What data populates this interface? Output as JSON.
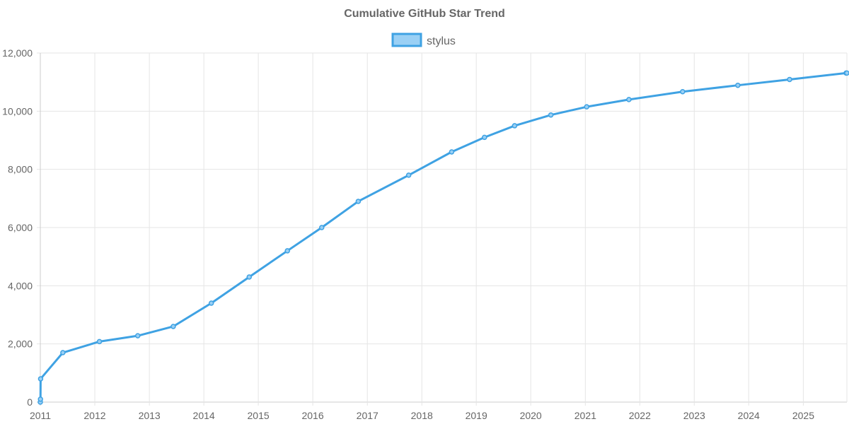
{
  "chart_data": {
    "type": "line",
    "title": "Cumulative GitHub Star Trend",
    "xlabel": "",
    "ylabel": "",
    "x_axis": {
      "type": "time",
      "range": [
        "2011-01-01",
        "2025-10-20"
      ],
      "tick_labels": [
        "2011",
        "2012",
        "2013",
        "2014",
        "2015",
        "2016",
        "2017",
        "2018",
        "2019",
        "2020",
        "2021",
        "2022",
        "2023",
        "2024",
        "2025"
      ]
    },
    "y_axis": {
      "range": [
        0,
        12000
      ],
      "tick_values": [
        0,
        2000,
        4000,
        6000,
        8000,
        10000,
        12000
      ],
      "tick_labels": [
        "0",
        "2,000",
        "4,000",
        "6,000",
        "8,000",
        "10,000",
        "12,000"
      ]
    },
    "grid": true,
    "legend": {
      "position": "top-center"
    },
    "series": [
      {
        "name": "stylus",
        "color": "#3fa2e3",
        "fill_color": "#9ad0f5",
        "points": [
          {
            "x": "2011-01-01",
            "y": 0
          },
          {
            "x": "2011-01-02",
            "y": 100
          },
          {
            "x": "2011-01-03",
            "y": 800
          },
          {
            "x": "2011-06-01",
            "y": 1700
          },
          {
            "x": "2012-02-01",
            "y": 2080
          },
          {
            "x": "2012-10-15",
            "y": 2280
          },
          {
            "x": "2013-06-10",
            "y": 2600
          },
          {
            "x": "2014-02-20",
            "y": 3400
          },
          {
            "x": "2014-11-01",
            "y": 4300
          },
          {
            "x": "2015-07-15",
            "y": 5200
          },
          {
            "x": "2016-03-01",
            "y": 6000
          },
          {
            "x": "2016-11-01",
            "y": 6900
          },
          {
            "x": "2017-10-05",
            "y": 7800
          },
          {
            "x": "2018-07-20",
            "y": 8600
          },
          {
            "x": "2019-02-25",
            "y": 9100
          },
          {
            "x": "2019-09-15",
            "y": 9500
          },
          {
            "x": "2020-05-15",
            "y": 9870
          },
          {
            "x": "2021-01-10",
            "y": 10150
          },
          {
            "x": "2021-10-20",
            "y": 10400
          },
          {
            "x": "2022-10-15",
            "y": 10670
          },
          {
            "x": "2023-10-20",
            "y": 10890
          },
          {
            "x": "2024-10-01",
            "y": 11090
          },
          {
            "x": "2025-10-15",
            "y": 11310
          },
          {
            "x": "2025-10-20",
            "y": 11310
          }
        ]
      }
    ]
  }
}
